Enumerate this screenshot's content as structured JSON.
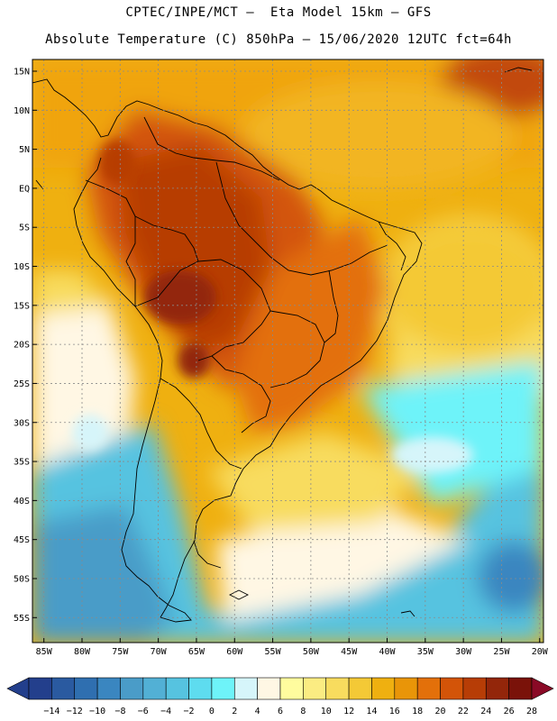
{
  "header": {
    "title_line1": "CPTEC/INPE/MCT –  Eta Model 15km – GFS",
    "title_line2": "Absolute Temperature (C) 850hPa – 15/06/2020 12UTC fct=64h"
  },
  "map": {
    "lat_labels": [
      "15N",
      "10N",
      "5N",
      "EQ",
      "5S",
      "10S",
      "15S",
      "20S",
      "25S",
      "30S",
      "35S",
      "40S",
      "45S",
      "50S",
      "55S"
    ],
    "lon_labels": [
      "85W",
      "80W",
      "75W",
      "70W",
      "65W",
      "60W",
      "55W",
      "50W",
      "45W",
      "40W",
      "35W",
      "30W",
      "25W",
      "20W"
    ],
    "lat_values": [
      15,
      10,
      5,
      0,
      -5,
      -10,
      -15,
      -20,
      -25,
      -30,
      -35,
      -40,
      -45,
      -50,
      -55
    ],
    "lon_values": [
      -85,
      -80,
      -75,
      -70,
      -65,
      -60,
      -55,
      -50,
      -45,
      -40,
      -35,
      -30,
      -25,
      -20
    ]
  },
  "colorbar": {
    "labels": [
      "-14",
      "-12",
      "-10",
      "-8",
      "-6",
      "-4",
      "-2",
      "0",
      "2",
      "4",
      "6",
      "8",
      "10",
      "12",
      "14",
      "16",
      "18",
      "20",
      "22",
      "24",
      "26",
      "28"
    ],
    "colors": [
      "#233f8c",
      "#2a5aa0",
      "#2f6fb0",
      "#3a86c0",
      "#4a9cc8",
      "#52b0d5",
      "#56c3e0",
      "#5edcef",
      "#6ef3f9",
      "#d6f5fa",
      "#fff7e4",
      "#fffc9e",
      "#fbec82",
      "#f8dc5e",
      "#f4c936",
      "#efb010",
      "#e99508",
      "#e3700a",
      "#d35408",
      "#b73d06",
      "#93260a",
      "#7a1209",
      "#8a0a26"
    ]
  }
}
